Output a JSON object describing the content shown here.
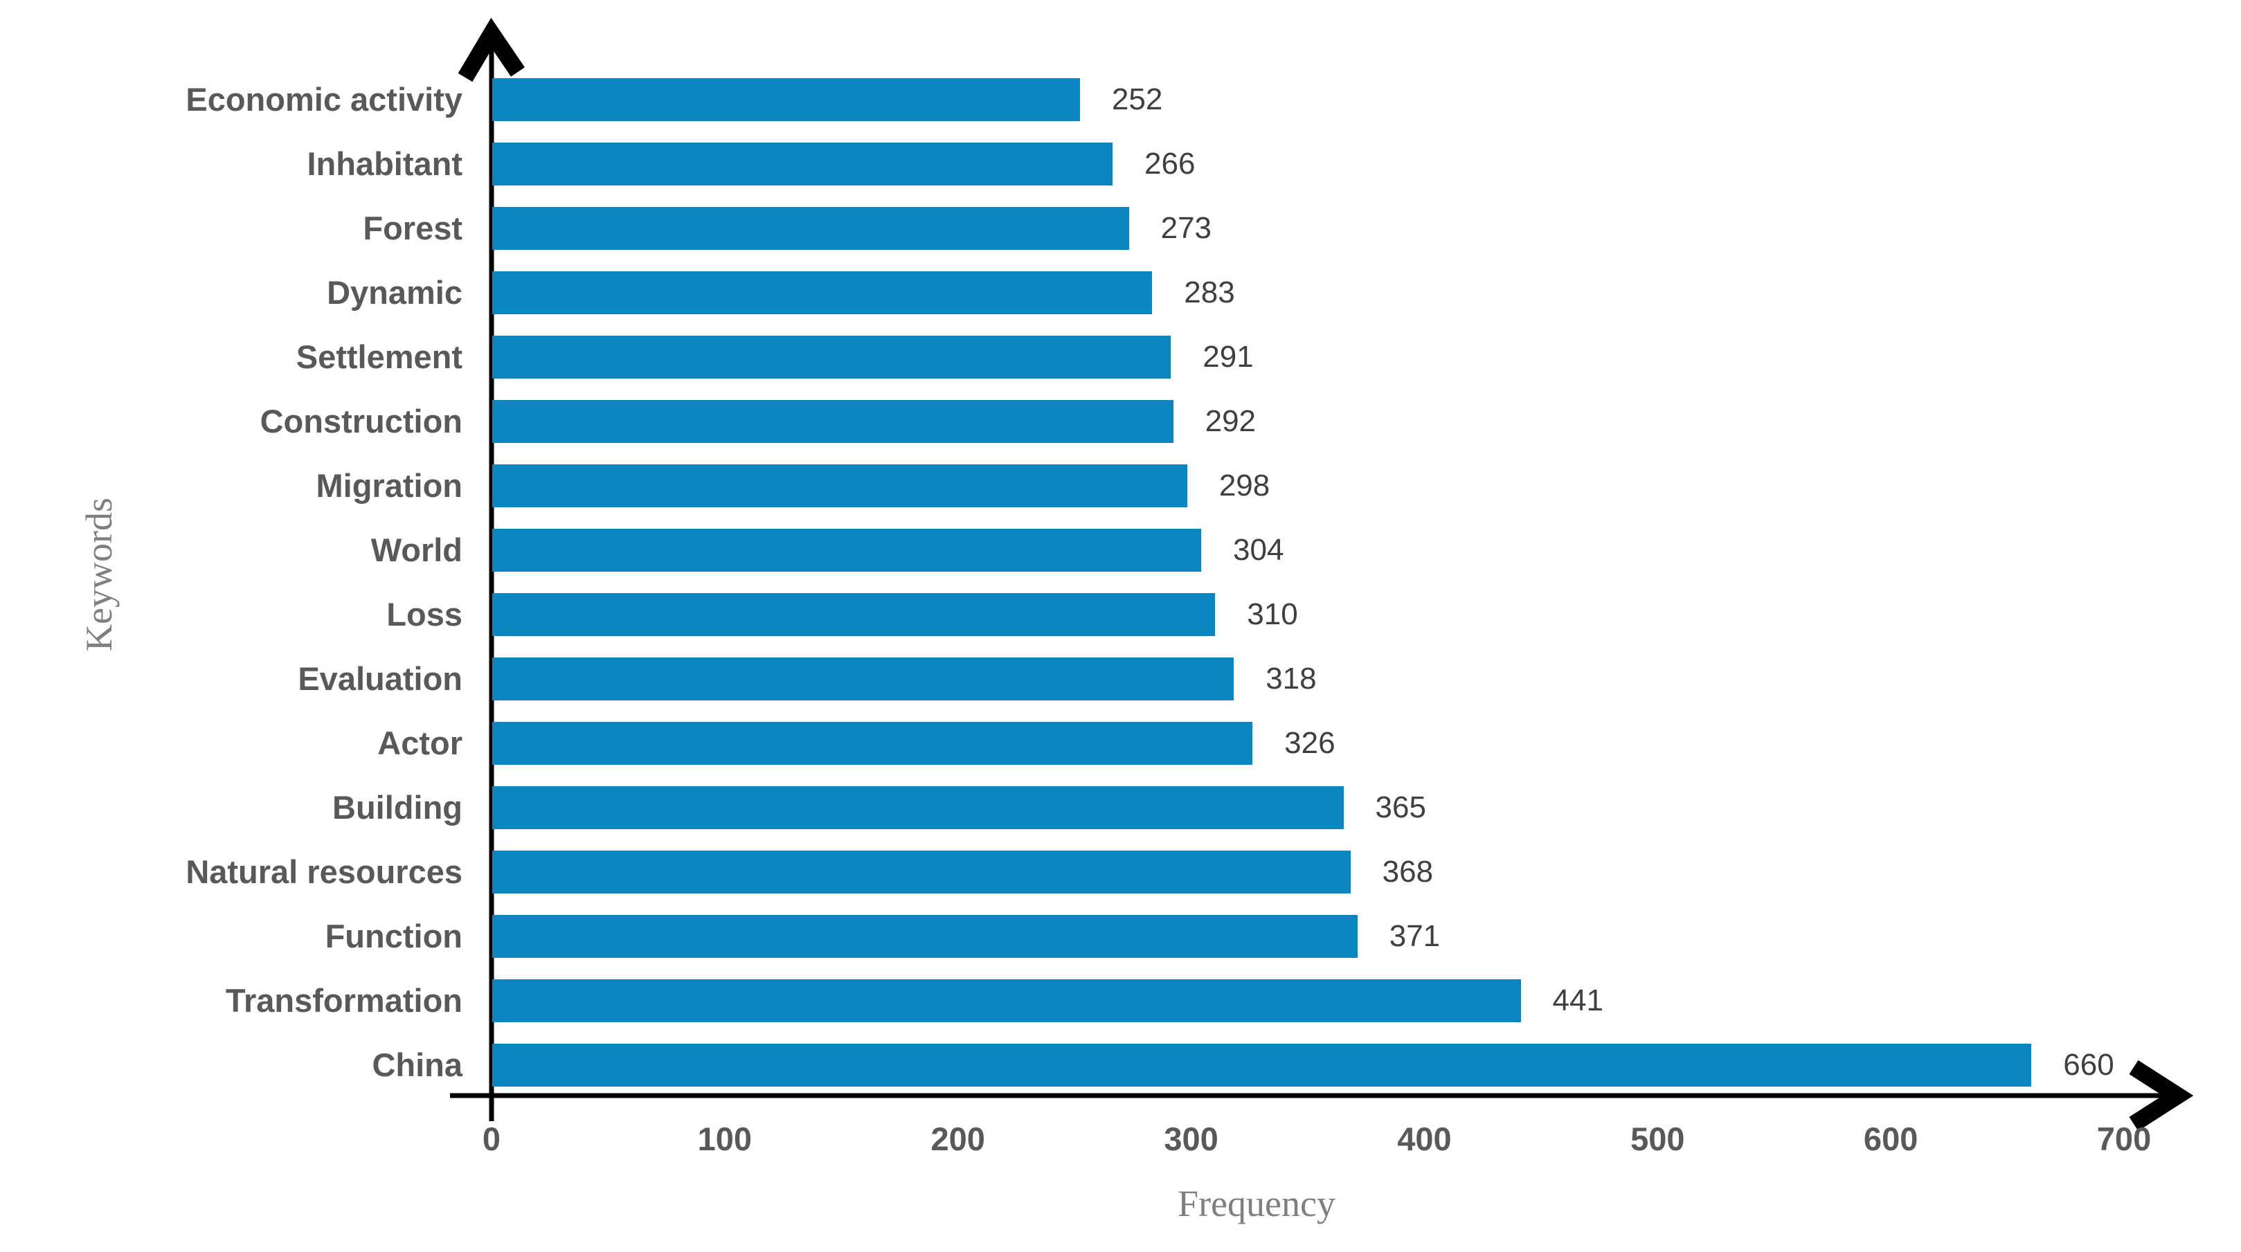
{
  "chart_data": {
    "type": "bar",
    "orientation": "horizontal",
    "title": "",
    "categories": [
      "Economic activity",
      "Inhabitant",
      "Forest",
      "Dynamic",
      "Settlement",
      "Construction",
      "Migration",
      "World",
      "Loss",
      "Evaluation",
      "Actor",
      "Building",
      "Natural resources",
      "Function",
      "Transformation",
      "China"
    ],
    "values": [
      252,
      266,
      273,
      283,
      291,
      292,
      298,
      304,
      310,
      318,
      326,
      365,
      368,
      371,
      441,
      660
    ],
    "xlabel": "Frequency",
    "ylabel": "Keywords",
    "xlim": [
      0,
      700
    ],
    "xticks": [
      0,
      100,
      200,
      300,
      400,
      500,
      600,
      700
    ],
    "grid": false,
    "legend": false,
    "data_labels": true,
    "bar_color": "#0b85c0",
    "category_label_color": "#595959",
    "value_label_color": "#3f3f3f",
    "tick_label_color": "#595959",
    "axis_title_color": "#7f7f7f",
    "axis_color": "#000000"
  }
}
